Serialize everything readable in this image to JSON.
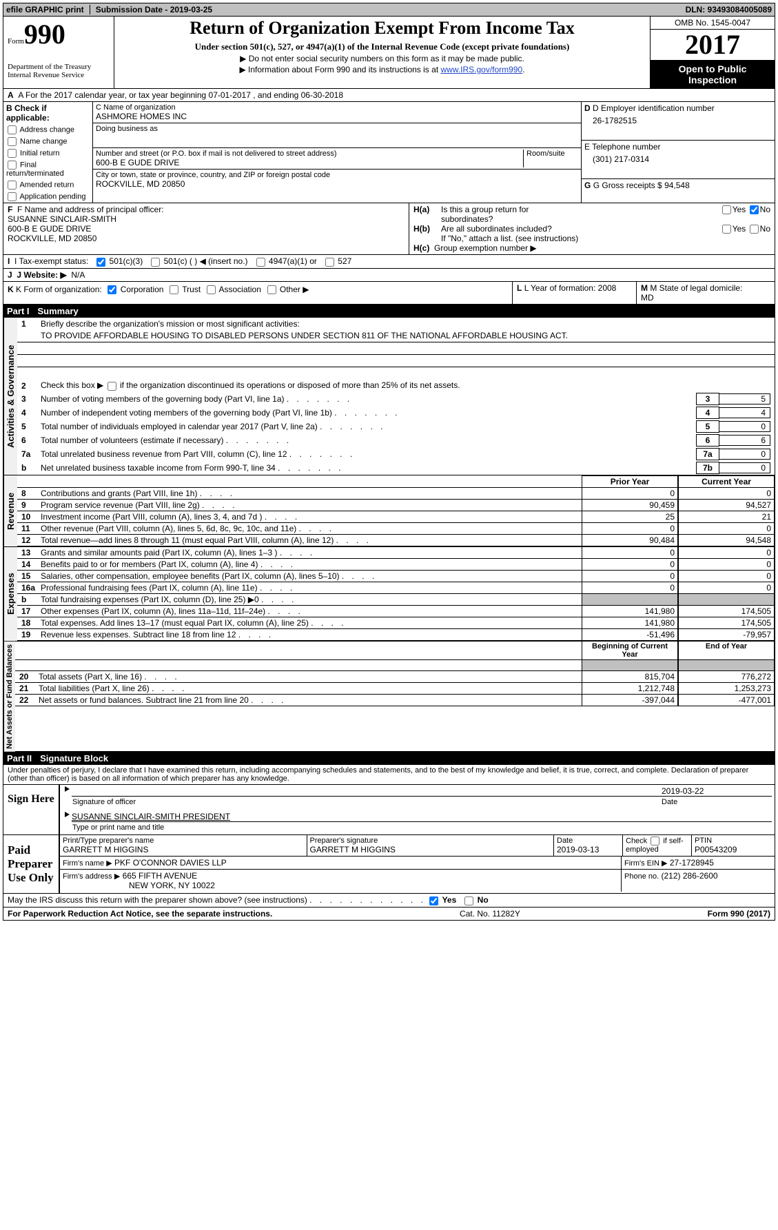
{
  "topbar": {
    "efile": "efile GRAPHIC print",
    "submission": "Submission Date - 2019-03-25",
    "dln": "DLN: 93493084005089"
  },
  "header": {
    "form_label": "Form",
    "form_num": "990",
    "dept1": "Department of the Treasury",
    "dept2": "Internal Revenue Service",
    "title": "Return of Organization Exempt From Income Tax",
    "sub": "Under section 501(c), 527, or 4947(a)(1) of the Internal Revenue Code (except private foundations)",
    "note1": "▶ Do not enter social security numbers on this form as it may be made public.",
    "note2": "▶ Information about Form 990 and its instructions is at ",
    "link": "www.IRS.gov/form990",
    "omb": "OMB No. 1545-0047",
    "year": "2017",
    "open1": "Open to Public",
    "open2": "Inspection"
  },
  "rowA": "A  For the 2017 calendar year, or tax year beginning 07-01-2017   , and ending 06-30-2018",
  "boxB": {
    "title": "B Check if applicable:",
    "items": [
      "Address change",
      "Name change",
      "Initial return",
      "Final return/terminated",
      "Amended return",
      "Application pending"
    ]
  },
  "boxC": {
    "name_l": "C Name of organization",
    "name": "ASHMORE HOMES INC",
    "dba_l": "Doing business as",
    "addr_l": "Number and street (or P.O. box if mail is not delivered to street address)",
    "room_l": "Room/suite",
    "addr": "600-B E GUDE DRIVE",
    "city_l": "City or town, state or province, country, and ZIP or foreign postal code",
    "city": "ROCKVILLE, MD  20850"
  },
  "boxD": {
    "l": "D Employer identification number",
    "v": "26-1782515"
  },
  "boxE": {
    "l": "E Telephone number",
    "v": "(301) 217-0314"
  },
  "boxG": {
    "l": "G Gross receipts $",
    "v": "94,548"
  },
  "boxF": {
    "l": "F  Name and address of principal officer:",
    "n": "SUSANNE SINCLAIR-SMITH",
    "a1": "600-B E GUDE DRIVE",
    "a2": "ROCKVILLE, MD  20850"
  },
  "boxH": {
    "ha": "Is this a group return for",
    "ha2": "subordinates?",
    "hb": "Are all subordinates included?",
    "hn": "If \"No,\" attach a list. (see instructions)",
    "hc": "Group exemption number ▶"
  },
  "boxI": {
    "l": "I  Tax-exempt status:",
    "o1": "501(c)(3)",
    "o2": "501(c) (  )",
    "o2b": "◀ (insert no.)",
    "o3": "4947(a)(1) or",
    "o4": "527"
  },
  "boxJ": {
    "l": "J  Website: ▶",
    "v": "N/A"
  },
  "boxK": {
    "l": "K Form of organization:",
    "o1": "Corporation",
    "o2": "Trust",
    "o3": "Association",
    "o4": "Other ▶"
  },
  "boxL": {
    "l": "L Year of formation:",
    "v": "2008"
  },
  "boxM": {
    "l": "M State of legal domicile:",
    "v": "MD"
  },
  "part1": {
    "h": "Part I",
    "t": "Summary"
  },
  "gov": {
    "side": "Activities & Governance",
    "l1": "Briefly describe the organization's mission or most significant activities:",
    "mission": "TO PROVIDE AFFORDABLE HOUSING TO DISABLED PERSONS UNDER SECTION 811 OF THE NATIONAL AFFORDABLE HOUSING ACT.",
    "l2": "Check this box ▶",
    "l2b": "if the organization discontinued its operations or disposed of more than 25% of its net assets.",
    "rows": [
      {
        "n": "3",
        "t": "Number of voting members of the governing body (Part VI, line 1a)",
        "b": "3",
        "v": "5"
      },
      {
        "n": "4",
        "t": "Number of independent voting members of the governing body (Part VI, line 1b)",
        "b": "4",
        "v": "4"
      },
      {
        "n": "5",
        "t": "Total number of individuals employed in calendar year 2017 (Part V, line 2a)",
        "b": "5",
        "v": "0"
      },
      {
        "n": "6",
        "t": "Total number of volunteers (estimate if necessary)",
        "b": "6",
        "v": "6"
      },
      {
        "n": "7a",
        "t": "Total unrelated business revenue from Part VIII, column (C), line 12",
        "b": "7a",
        "v": "0"
      },
      {
        "n": "b",
        "t": "Net unrelated business taxable income from Form 990-T, line 34",
        "b": "7b",
        "v": "0"
      }
    ]
  },
  "pyhead": {
    "py": "Prior Year",
    "cy": "Current Year"
  },
  "rev": {
    "side": "Revenue",
    "rows": [
      {
        "n": "8",
        "t": "Contributions and grants (Part VIII, line 1h)",
        "p": "0",
        "c": "0"
      },
      {
        "n": "9",
        "t": "Program service revenue (Part VIII, line 2g)",
        "p": "90,459",
        "c": "94,527"
      },
      {
        "n": "10",
        "t": "Investment income (Part VIII, column (A), lines 3, 4, and 7d )",
        "p": "25",
        "c": "21"
      },
      {
        "n": "11",
        "t": "Other revenue (Part VIII, column (A), lines 5, 6d, 8c, 9c, 10c, and 11e)",
        "p": "0",
        "c": "0"
      },
      {
        "n": "12",
        "t": "Total revenue—add lines 8 through 11 (must equal Part VIII, column (A), line 12)",
        "p": "90,484",
        "c": "94,548"
      }
    ]
  },
  "exp": {
    "side": "Expenses",
    "rows": [
      {
        "n": "13",
        "t": "Grants and similar amounts paid (Part IX, column (A), lines 1–3 )",
        "p": "0",
        "c": "0"
      },
      {
        "n": "14",
        "t": "Benefits paid to or for members (Part IX, column (A), line 4)",
        "p": "0",
        "c": "0"
      },
      {
        "n": "15",
        "t": "Salaries, other compensation, employee benefits (Part IX, column (A), lines 5–10)",
        "p": "0",
        "c": "0"
      },
      {
        "n": "16a",
        "t": "Professional fundraising fees (Part IX, column (A), line 11e)",
        "p": "0",
        "c": "0"
      },
      {
        "n": "b",
        "t": "Total fundraising expenses (Part IX, column (D), line 25) ▶0",
        "p": "",
        "c": "",
        "gray": true
      },
      {
        "n": "17",
        "t": "Other expenses (Part IX, column (A), lines 11a–11d, 11f–24e)",
        "p": "141,980",
        "c": "174,505"
      },
      {
        "n": "18",
        "t": "Total expenses. Add lines 13–17 (must equal Part IX, column (A), line 25)",
        "p": "141,980",
        "c": "174,505"
      },
      {
        "n": "19",
        "t": "Revenue less expenses. Subtract line 18 from line 12",
        "p": "-51,496",
        "c": "-79,957"
      }
    ]
  },
  "nahead": {
    "py": "Beginning of Current Year",
    "cy": "End of Year"
  },
  "na": {
    "side": "Net Assets or Fund Balances",
    "rows": [
      {
        "n": "20",
        "t": "Total assets (Part X, line 16)",
        "p": "815,704",
        "c": "776,272"
      },
      {
        "n": "21",
        "t": "Total liabilities (Part X, line 26)",
        "p": "1,212,748",
        "c": "1,253,273"
      },
      {
        "n": "22",
        "t": "Net assets or fund balances. Subtract line 21 from line 20",
        "p": "-397,044",
        "c": "-477,001"
      }
    ]
  },
  "part2": {
    "h": "Part II",
    "t": "Signature Block"
  },
  "perjury": "Under penalties of perjury, I declare that I have examined this return, including accompanying schedules and statements, and to the best of my knowledge and belief, it is true, correct, and complete. Declaration of preparer (other than officer) is based on all information of which preparer has any knowledge.",
  "sign": {
    "l": "Sign Here",
    "date": "2019-03-22",
    "so": "Signature of officer",
    "dt": "Date",
    "name": "SUSANNE SINCLAIR-SMITH PRESIDENT",
    "tp": "Type or print name and title"
  },
  "prep": {
    "l": "Paid Preparer Use Only",
    "pn_l": "Print/Type preparer's name",
    "pn": "GARRETT M HIGGINS",
    "ps_l": "Preparer's signature",
    "ps": "GARRETT M HIGGINS",
    "pd_l": "Date",
    "pd": "2019-03-13",
    "ck_l": "Check",
    "se": "if self-employed",
    "ptin_l": "PTIN",
    "ptin": "P00543209",
    "fn_l": "Firm's name    ▶",
    "fn": "PKF O'CONNOR DAVIES LLP",
    "fe_l": "Firm's EIN ▶",
    "fe": "27-1728945",
    "fa_l": "Firm's address ▶",
    "fa": "665 FIFTH AVENUE",
    "fa2": "NEW YORK, NY  10022",
    "ph_l": "Phone no.",
    "ph": "(212) 286-2600"
  },
  "discuss": "May the IRS discuss this return with the preparer shown above? (see instructions)",
  "yes": "Yes",
  "no": "No",
  "footer": {
    "l": "For Paperwork Reduction Act Notice, see the separate instructions.",
    "m": "Cat. No. 11282Y",
    "r": "Form 990 (2017)"
  }
}
